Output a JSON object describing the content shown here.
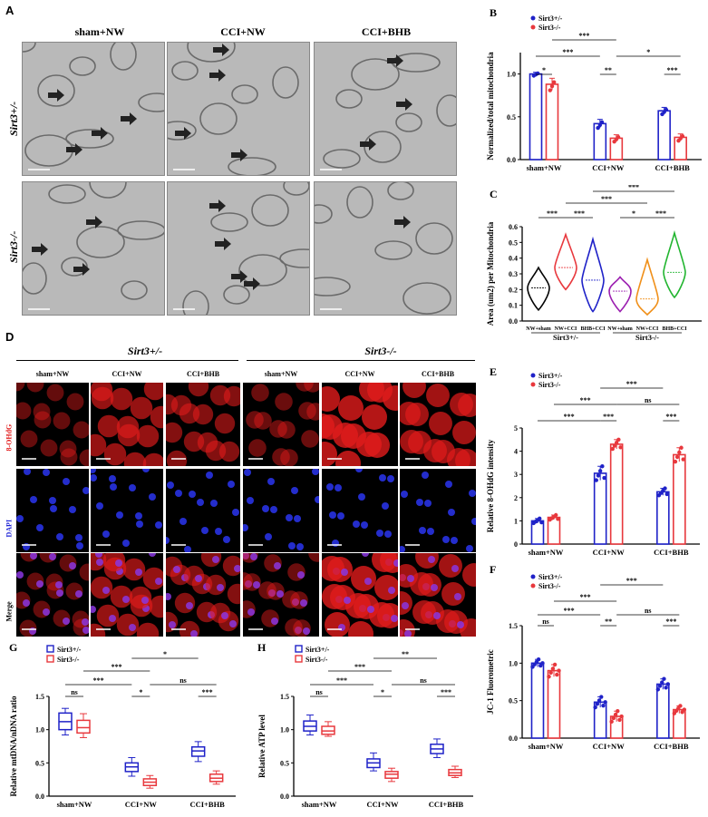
{
  "colors": {
    "het": "#1f22c8",
    "ko": "#e8383d",
    "red_fluor": "#e11b1b",
    "blue_fluor": "#1d23d6"
  },
  "icons": {
    "arrow": "right-arrow-icon"
  },
  "panelA": {
    "letter": "A",
    "columns": [
      "sham+NW",
      "CCI+NW",
      "CCI+BHB"
    ],
    "rows": [
      "Sirt3+/-",
      "Sirt3-/-"
    ]
  },
  "panelB": {
    "letter": "B",
    "legend": [
      "Sirt3+/-",
      "Sirt3-/-"
    ],
    "ylabel": "Normalized/total mitochondria",
    "yticks": [
      "0.0",
      "0.5",
      "1.0"
    ],
    "groups": [
      "sham+NW",
      "CCI+NW",
      "CCI+BHB"
    ],
    "sig": [
      "*",
      "**",
      "***",
      "***",
      "***",
      "*"
    ]
  },
  "panelC": {
    "letter": "C",
    "ylabel": "Area (um2) per Mitochondria",
    "yticks": [
      "0.0",
      "0.1",
      "0.2",
      "0.3",
      "0.4",
      "0.5",
      "0.6"
    ],
    "groups": [
      "NW+sham",
      "NW+CCI",
      "BHB+CCI",
      "NW+sham",
      "NW+CCI",
      "BHB+CCI"
    ],
    "genotypes": [
      "Sirt3+/-",
      "Sirt3-/-"
    ],
    "sig": [
      "***",
      "***",
      "*",
      "***",
      "***",
      "***"
    ]
  },
  "panelD": {
    "letter": "D",
    "genotypes": [
      "Sirt3+/-",
      "Sirt3-/-"
    ],
    "columns": [
      "sham+NW",
      "CCI+NW",
      "CCI+BHB",
      "sham+NW",
      "CCI+NW",
      "CCI+BHB"
    ],
    "rows": [
      "8-OHdG",
      "DAPI",
      "Merge"
    ]
  },
  "panelE": {
    "letter": "E",
    "legend": [
      "Sirt3+/-",
      "Sirt3-/-"
    ],
    "ylabel": "Relative 8-OHdG intensity",
    "yticks": [
      "0",
      "1",
      "2",
      "3",
      "4",
      "5"
    ],
    "groups": [
      "sham+NW",
      "CCI+NW",
      "CCI+BHB"
    ],
    "sig": [
      "***",
      "***",
      "***",
      "***",
      "***",
      "ns"
    ]
  },
  "panelF": {
    "letter": "F",
    "legend": [
      "Sirt3+/-",
      "Sirt3-/-"
    ],
    "ylabel": "JC-1 Fluorometric",
    "yticks": [
      "0.0",
      "0.5",
      "1.0",
      "1.5"
    ],
    "groups": [
      "sham+NW",
      "CCI+NW",
      "CCI+BHB"
    ],
    "sig": [
      "ns",
      "**",
      "***",
      "***",
      "***",
      "***",
      "ns"
    ]
  },
  "panelG": {
    "letter": "G",
    "legend": [
      "Sirt3+/-",
      "Sirt3-/-"
    ],
    "ylabel": "Relative mtDNA/nDNA ratio",
    "yticks": [
      "0.0",
      "0.5",
      "1.0",
      "1.5"
    ],
    "groups": [
      "sham+NW",
      "CCI+NW",
      "CCI+BHB"
    ],
    "sig": [
      "ns",
      "*",
      "***",
      "***",
      "***",
      "ns",
      "*"
    ]
  },
  "panelH": {
    "letter": "H",
    "legend": [
      "Sirt3+/-",
      "Sirt3-/-"
    ],
    "ylabel": "Relative ATP level",
    "yticks": [
      "0.0",
      "0.5",
      "1.0",
      "1.5"
    ],
    "groups": [
      "sham+NW",
      "CCI+NW",
      "CCI+BHB"
    ],
    "sig": [
      "ns",
      "*",
      "***",
      "***",
      "***",
      "ns",
      "**"
    ]
  },
  "chart_data": [
    {
      "panel": "B",
      "type": "bar",
      "categories": [
        "sham+NW",
        "CCI+NW",
        "CCI+BHB"
      ],
      "series": [
        {
          "name": "Sirt3+/-",
          "values": [
            1.0,
            0.42,
            0.57
          ],
          "err": [
            0.02,
            0.05,
            0.04
          ]
        },
        {
          "name": "Sirt3-/-",
          "values": [
            0.88,
            0.25,
            0.26
          ],
          "err": [
            0.07,
            0.04,
            0.04
          ]
        }
      ],
      "ylim": [
        0,
        1.25
      ]
    },
    {
      "panel": "C",
      "type": "violin",
      "categories": [
        "NW+sham",
        "NW+CCI",
        "BHB+CCI",
        "NW+sham",
        "NW+CCI",
        "BHB+CCI"
      ],
      "medians": [
        0.21,
        0.34,
        0.26,
        0.19,
        0.14,
        0.31
      ],
      "mins": [
        0.07,
        0.2,
        0.06,
        0.06,
        0.04,
        0.15
      ],
      "maxs": [
        0.34,
        0.55,
        0.52,
        0.28,
        0.39,
        0.56
      ],
      "colors": [
        "#000000",
        "#e8383d",
        "#1f22c8",
        "#9b1fb0",
        "#f0901a",
        "#22b530"
      ],
      "ylim": [
        0,
        0.6
      ]
    },
    {
      "panel": "E",
      "type": "bar",
      "categories": [
        "sham+NW",
        "CCI+NW",
        "CCI+BHB"
      ],
      "series": [
        {
          "name": "Sirt3+/-",
          "values": [
            1.0,
            3.05,
            2.25
          ],
          "err": [
            0.1,
            0.3,
            0.15
          ]
        },
        {
          "name": "Sirt3-/-",
          "values": [
            1.15,
            4.3,
            3.85
          ],
          "err": [
            0.1,
            0.2,
            0.3
          ]
        }
      ],
      "ylim": [
        0,
        5
      ]
    },
    {
      "panel": "F",
      "type": "bar",
      "categories": [
        "sham+NW",
        "CCI+NW",
        "CCI+BHB"
      ],
      "series": [
        {
          "name": "Sirt3+/-",
          "values": [
            1.0,
            0.48,
            0.72
          ],
          "err": [
            0.05,
            0.07,
            0.07
          ]
        },
        {
          "name": "Sirt3-/-",
          "values": [
            0.9,
            0.29,
            0.38
          ],
          "err": [
            0.08,
            0.07,
            0.05
          ]
        }
      ],
      "ylim": [
        0,
        1.5
      ]
    },
    {
      "panel": "G",
      "type": "box",
      "categories": [
        "sham+NW",
        "CCI+NW",
        "CCI+BHB"
      ],
      "series": [
        {
          "name": "Sirt3+/-",
          "boxes": [
            [
              0.92,
              1.0,
              1.12,
              1.25,
              1.32
            ],
            [
              0.3,
              0.37,
              0.44,
              0.5,
              0.58
            ],
            [
              0.52,
              0.6,
              0.68,
              0.74,
              0.82
            ]
          ]
        },
        {
          "name": "Sirt3-/-",
          "boxes": [
            [
              0.88,
              0.95,
              1.03,
              1.14,
              1.24
            ],
            [
              0.12,
              0.16,
              0.21,
              0.26,
              0.31
            ],
            [
              0.18,
              0.22,
              0.27,
              0.33,
              0.38
            ]
          ]
        }
      ],
      "ylim": [
        0,
        1.5
      ]
    },
    {
      "panel": "H",
      "type": "box",
      "categories": [
        "sham+NW",
        "CCI+NW",
        "CCI+BHB"
      ],
      "series": [
        {
          "name": "Sirt3+/-",
          "boxes": [
            [
              0.92,
              0.98,
              1.05,
              1.13,
              1.22
            ],
            [
              0.38,
              0.43,
              0.5,
              0.56,
              0.65
            ],
            [
              0.58,
              0.64,
              0.71,
              0.78,
              0.86
            ]
          ]
        },
        {
          "name": "Sirt3-/-",
          "boxes": [
            [
              0.9,
              0.93,
              0.98,
              1.05,
              1.12
            ],
            [
              0.22,
              0.27,
              0.33,
              0.37,
              0.42
            ],
            [
              0.28,
              0.31,
              0.35,
              0.4,
              0.45
            ]
          ]
        }
      ],
      "ylim": [
        0,
        1.5
      ]
    }
  ]
}
